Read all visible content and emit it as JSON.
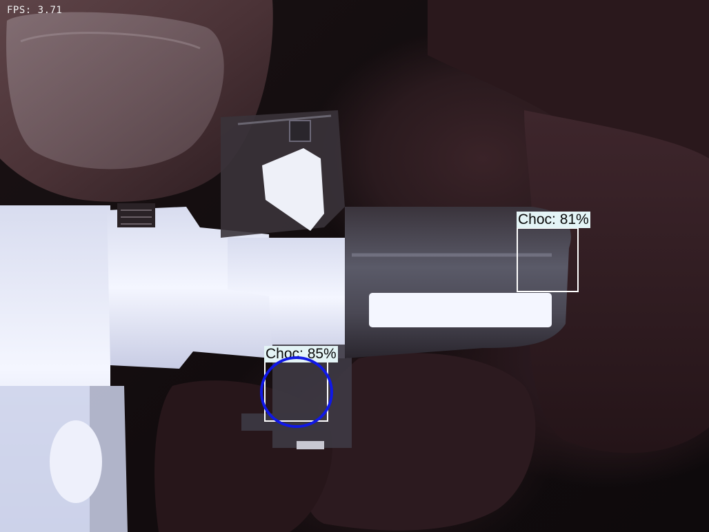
{
  "overlay": {
    "fps_text": "FPS: 3.71"
  },
  "detections": [
    {
      "label": "Choc: 81%"
    },
    {
      "label": "Choc: 85%"
    }
  ],
  "colors": {
    "box_border": "#ffffff",
    "label_background": "#e4f4f6",
    "label_text": "#0a0a0a",
    "marker": "#1018e6"
  }
}
